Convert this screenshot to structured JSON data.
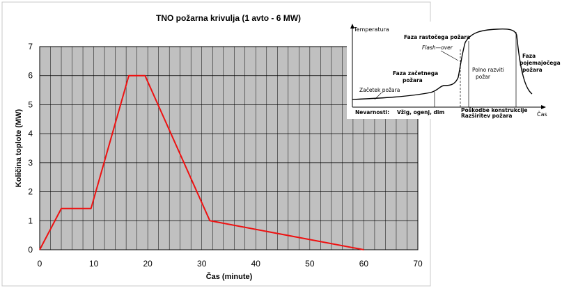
{
  "chart_data": [
    {
      "type": "line",
      "title": "TNO požarna krivulja (1 avto - 6 MW)",
      "xlabel": "Čas (minute)",
      "ylabel": "Količina toplote (MW)",
      "xlim": [
        0,
        70
      ],
      "ylim": [
        0,
        7
      ],
      "xticks": [
        "0",
        "10",
        "20",
        "30",
        "40",
        "50",
        "60",
        "70"
      ],
      "yticks": [
        "0",
        "1",
        "2",
        "3",
        "4",
        "5",
        "6",
        "7"
      ],
      "grid": true,
      "series_color": "#ee1111",
      "series": [
        {
          "x": [
            0,
            4,
            9.5,
            16.5,
            19.5,
            31.5,
            60
          ],
          "values": [
            0,
            1.42,
            1.42,
            6,
            6,
            1,
            0
          ]
        }
      ]
    },
    {
      "type": "line",
      "ylabel": "Temperatura",
      "xlabel": "Čas",
      "annotations": {
        "faza_rastocega_1": "Faza rastočega požara",
        "flash_over": "Flash—over",
        "faza_zacetnega_1": "Faza začetnega",
        "faza_zacetnega_2": "požara",
        "polno_1": "Polno razviti",
        "polno_2": "požar",
        "faza_pojemajocega_1": "Faza",
        "faza_pojemajocega_2": "pojemajočega",
        "faza_pojemajocega_3": "požara",
        "zacetek": "Začetek požara",
        "nevarnosti": "Nevarnosti:",
        "vzig": "Vžig, ogenj, dim",
        "poskodbe": "Poškodbe konstrukcije",
        "razsiritev": "Razširitev požara"
      }
    }
  ]
}
